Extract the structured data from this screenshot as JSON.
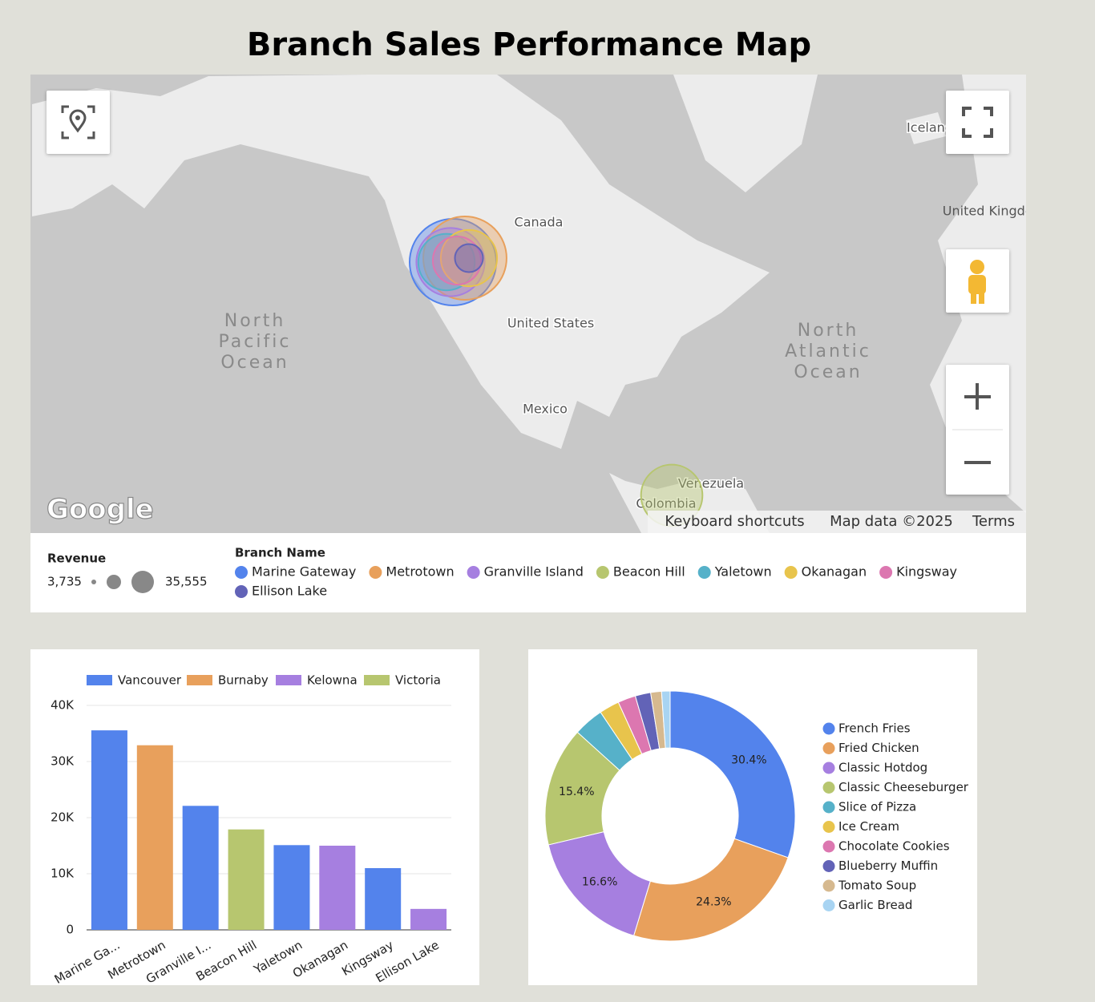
{
  "title": "Branch Sales Performance Map",
  "chart_data": [
    {
      "type": "bubble-map",
      "size_legend_title": "Revenue",
      "size_legend": [
        {
          "value": 3735,
          "label": "3,735"
        },
        {
          "value": 35555,
          "label": "35,555"
        }
      ],
      "legend_title": "Branch Name",
      "categories": [
        "Marine Gateway",
        "Metrotown",
        "Granville Island",
        "Beacon Hill",
        "Yaletown",
        "Okanagan",
        "Kingsway",
        "Ellison Lake"
      ],
      "values": [
        35555,
        32900,
        22100,
        17900,
        15100,
        15000,
        11000,
        3735
      ],
      "colors": [
        "#5383ec",
        "#e8a05c",
        "#a67fe0",
        "#b7c66f",
        "#56b1c9",
        "#e8c44c",
        "#dc77b0",
        "#6263b7"
      ],
      "map_labels": [
        "Canada",
        "United States",
        "Mexico",
        "North Pacific Ocean",
        "North Atlantic Ocean",
        "Venezuela",
        "Colombia",
        "Iceland",
        "United Kingdom"
      ],
      "logo": "Google",
      "attribution": [
        "Keyboard shortcuts",
        "Map data ©2025",
        "Terms"
      ]
    },
    {
      "type": "bar",
      "categories": [
        "Marine Ga...",
        "Metrotown",
        "Granville I...",
        "Beacon Hill",
        "Yaletown",
        "Okanagan",
        "Kingsway",
        "Ellison Lake"
      ],
      "series": [
        {
          "name": "Vancouver",
          "color": "#5383ec",
          "values": [
            35555,
            null,
            22100,
            null,
            15100,
            null,
            11000,
            null
          ]
        },
        {
          "name": "Burnaby",
          "color": "#e8a05c",
          "values": [
            null,
            32900,
            null,
            null,
            null,
            null,
            null,
            null
          ]
        },
        {
          "name": "Kelowna",
          "color": "#a67fe0",
          "values": [
            null,
            null,
            null,
            null,
            null,
            15000,
            null,
            3735
          ]
        },
        {
          "name": "Victoria",
          "color": "#b7c66f",
          "values": [
            null,
            null,
            null,
            17900,
            null,
            null,
            null,
            null
          ]
        }
      ],
      "ylim": [
        0,
        40000
      ],
      "yticks": [
        0,
        {
          "value": 10000,
          "label": "10K"
        },
        {
          "value": 20000,
          "label": "20K"
        },
        {
          "value": 30000,
          "label": "30K"
        },
        {
          "value": 40000,
          "label": "40K"
        }
      ],
      "grid": true
    },
    {
      "type": "pie",
      "categories": [
        "French Fries",
        "Fried Chicken",
        "Classic Hotdog",
        "Classic Cheeseburger",
        "Slice of Pizza",
        "Ice Cream",
        "Chocolate Cookies",
        "Blueberry Muffin",
        "Tomato Soup",
        "Garlic Bread"
      ],
      "values": [
        30.4,
        24.3,
        16.6,
        15.4,
        3.9,
        2.6,
        2.3,
        2.0,
        1.4,
        1.1
      ],
      "value_labels": [
        "30.4%",
        "24.3%",
        "16.6%",
        "15.4%",
        null,
        null,
        null,
        null,
        null,
        null
      ],
      "colors": [
        "#5383ec",
        "#e8a05c",
        "#a67fe0",
        "#b7c66f",
        "#56b1c9",
        "#e8c44c",
        "#dc77b0",
        "#6263b7",
        "#d6b98f",
        "#a8d4f2"
      ],
      "donut": true
    }
  ]
}
